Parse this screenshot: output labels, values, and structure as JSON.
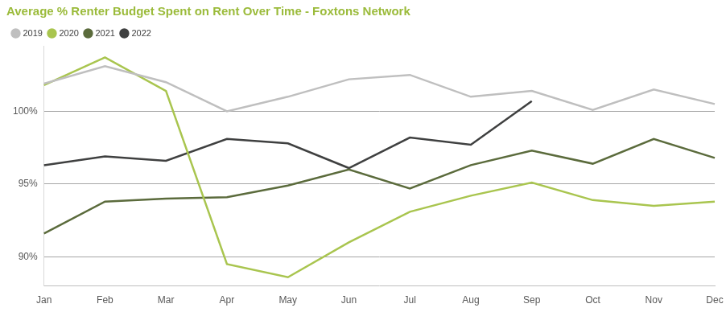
{
  "chart_data": {
    "type": "line",
    "title": "Average % Renter Budget Spent on Rent Over Time - Foxtons Network",
    "categories": [
      "Jan",
      "Feb",
      "Mar",
      "Apr",
      "May",
      "Jun",
      "Jul",
      "Aug",
      "Sep",
      "Oct",
      "Nov",
      "Dec"
    ],
    "series": [
      {
        "name": "2019",
        "color": "#bfbfbf",
        "values": [
          101.9,
          103.1,
          102.0,
          100.0,
          101.0,
          102.2,
          102.5,
          101.0,
          101.4,
          100.1,
          101.5,
          100.5
        ]
      },
      {
        "name": "2020",
        "color": "#a9c54f",
        "values": [
          101.8,
          103.7,
          101.4,
          89.5,
          88.6,
          91.0,
          93.1,
          94.2,
          95.1,
          93.9,
          93.5,
          93.8
        ]
      },
      {
        "name": "2021",
        "color": "#5b6b3c",
        "values": [
          91.6,
          93.8,
          94.0,
          94.1,
          94.9,
          96.0,
          94.7,
          96.3,
          97.3,
          96.4,
          98.1,
          96.8
        ]
      },
      {
        "name": "2022",
        "color": "#3f4040",
        "values": [
          96.3,
          96.9,
          96.6,
          98.1,
          97.8,
          96.1,
          98.2,
          97.7,
          100.7,
          null,
          null,
          null
        ]
      }
    ],
    "ylim": [
      88,
      104.5
    ],
    "yticks": [
      {
        "value": 90,
        "label": "90%"
      },
      {
        "value": 95,
        "label": "95%"
      },
      {
        "value": 100,
        "label": "100%"
      }
    ],
    "grid": true,
    "legend": "top-left"
  }
}
